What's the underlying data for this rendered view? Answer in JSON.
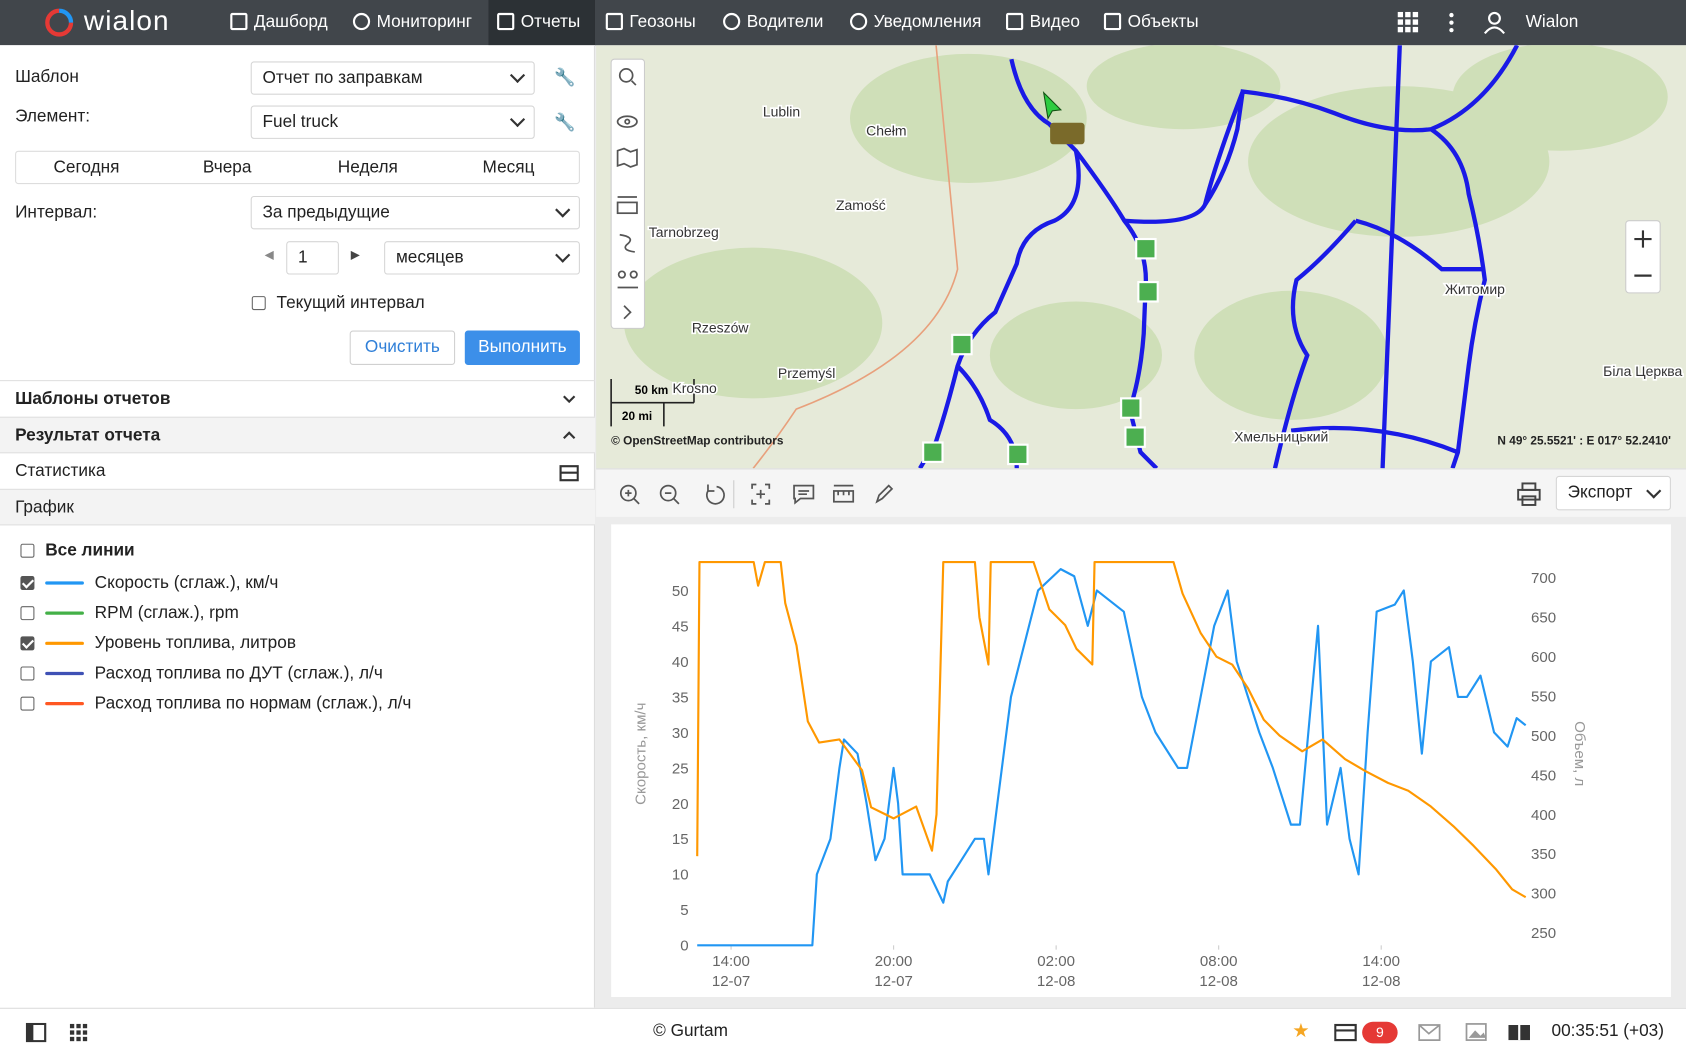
{
  "nav": {
    "logo": "wialon",
    "items": [
      "Дашборд",
      "Мониторинг",
      "Отчеты",
      "Геозоны",
      "Водители",
      "Уведомления",
      "Видео",
      "Объекты"
    ],
    "active": 2,
    "user": "Wialon"
  },
  "form": {
    "template_label": "Шаблон",
    "template_value": "Отчет по заправкам",
    "element_label": "Элемент:",
    "element_value": "Fuel truck",
    "periods": [
      "Сегодня",
      "Вчера",
      "Неделя",
      "Месяц"
    ],
    "interval_label": "Интервал:",
    "interval_value": "За предыдущие",
    "count": "1",
    "unit": "месяцев",
    "current_interval": "Текущий интервал",
    "clear": "Очистить",
    "run": "Выполнить"
  },
  "sections": [
    "Шаблоны отчетов",
    "Результат отчета",
    "Статистика",
    "График"
  ],
  "lines": {
    "all": "Все линии",
    "items": [
      {
        "name": "Скорость (сглаж.), км/ч",
        "color": "#2196f3",
        "checked": true
      },
      {
        "name": "RPM (сглаж.), rpm",
        "color": "#43b047",
        "checked": false
      },
      {
        "name": "Уровень топлива, литров",
        "color": "#ff9800",
        "checked": true
      },
      {
        "name": "Расход топлива по ДУТ (сглаж.), л/ч",
        "color": "#3f51b5",
        "checked": false
      },
      {
        "name": "Расход топлива по нормам (сглаж.), л/ч",
        "color": "#ff5722",
        "checked": false
      }
    ]
  },
  "map": {
    "labels": [
      "Lublin",
      "Chełm",
      "Zamość",
      "Tarnobrzeg",
      "Rzeszów",
      "Przemyśl",
      "Krosno",
      "Житомир",
      "Біла Церква",
      "Хмельницький"
    ],
    "scale_km": "50 km",
    "scale_mi": "20 mi",
    "attribution": "© OpenStreetMap contributors",
    "coords": "N 49° 25.5521' : E 017° 52.2410'"
  },
  "toolbar": {
    "export": "Экспорт"
  },
  "footer": {
    "copyright": "© Gurtam",
    "badge": "9",
    "time": "00:35:51 (+03)"
  },
  "chart_data": {
    "type": "line",
    "y_label": "Скорость, км/ч",
    "y2_label": "Объем, л",
    "xlim": [
      "12-07 12:45",
      "12-08 19:20"
    ],
    "xticks": [
      {
        "value": "12-07 14:00",
        "label": "14:00 12-07"
      },
      {
        "value": "12-07 20:00",
        "label": "20:00 12-07"
      },
      {
        "value": "12-08 02:00",
        "label": "02:00 12-08"
      },
      {
        "value": "12-08 08:00",
        "label": "08:00 12-08"
      },
      {
        "value": "12-08 14:00",
        "label": "14:00 12-08"
      }
    ],
    "ylim": [
      0,
      54
    ],
    "yticks": [
      0,
      5,
      10,
      15,
      20,
      25,
      30,
      35,
      40,
      45,
      50
    ],
    "y2lim": [
      234,
      720
    ],
    "y2ticks": [
      250,
      300,
      350,
      400,
      450,
      500,
      550,
      600,
      650,
      700
    ],
    "series": [
      {
        "color": "#2196f3",
        "axis": "y",
        "x": [
          "12-07 12:45",
          "12-07 17:00",
          "12-07 17:10",
          "12-07 17:40",
          "12-07 18:00",
          "12-07 18:10",
          "12-07 18:40",
          "12-07 19:00",
          "12-07 19:20",
          "12-07 19:40",
          "12-07 20:00",
          "12-07 20:10",
          "12-07 20:20",
          "12-07 21:20",
          "12-07 21:50",
          "12-07 22:00",
          "12-07 22:20",
          "12-07 23:00",
          "12-07 23:20",
          "12-07 23:30",
          "12-07 23:50",
          "12-08 00:20",
          "12-08 01:00",
          "12-08 01:20",
          "12-08 02:10",
          "12-08 02:40",
          "12-08 03:10",
          "12-08 03:30",
          "12-08 04:30",
          "12-08 05:10",
          "12-08 05:40",
          "12-08 06:30",
          "12-08 06:50",
          "12-08 07:20",
          "12-08 07:50",
          "12-08 08:20",
          "12-08 08:40",
          "12-08 09:30",
          "12-08 10:00",
          "12-08 10:40",
          "12-08 11:00",
          "12-08 11:40",
          "12-08 12:00",
          "12-08 12:30",
          "12-08 12:50",
          "12-08 13:10",
          "12-08 13:30",
          "12-08 13:50",
          "12-08 14:30",
          "12-08 14:50",
          "12-08 15:10",
          "12-08 15:30",
          "12-08 15:50",
          "12-08 16:30",
          "12-08 16:50",
          "12-08 17:10",
          "12-08 17:40",
          "12-08 18:10",
          "12-08 18:40",
          "12-08 19:00",
          "12-08 19:20"
        ],
        "values": [
          0,
          0,
          10,
          15,
          25,
          29,
          27,
          20,
          12,
          15,
          25,
          20,
          10,
          10,
          6,
          9,
          11,
          15,
          15,
          10,
          20,
          35,
          45,
          50,
          53,
          52,
          45,
          50,
          47,
          35,
          30,
          25,
          25,
          35,
          45,
          50,
          40,
          30,
          25,
          17,
          17,
          45,
          17,
          25,
          15,
          10,
          30,
          47,
          48,
          50,
          40,
          27,
          40,
          42,
          35,
          35,
          38,
          30,
          28,
          32,
          31
        ]
      },
      {
        "color": "#ff9800",
        "axis": "y2",
        "x": [
          "12-07 12:45",
          "12-07 12:50",
          "12-07 14:50",
          "12-07 15:00",
          "12-07 15:15",
          "12-07 15:50",
          "12-07 16:00",
          "12-07 16:25",
          "12-07 16:50",
          "12-07 17:15",
          "12-07 18:00",
          "12-07 18:50",
          "12-07 19:10",
          "12-07 20:00",
          "12-07 20:50",
          "12-07 21:25",
          "12-07 21:35",
          "12-07 21:50",
          "12-07 23:00",
          "12-07 23:10",
          "12-07 23:30",
          "12-07 23:35",
          "12-08 01:10",
          "12-08 01:45",
          "12-08 02:20",
          "12-08 02:45",
          "12-08 03:20",
          "12-08 03:25",
          "12-08 06:20",
          "12-08 06:40",
          "12-08 07:20",
          "12-08 07:55",
          "12-08 08:30",
          "12-08 09:05",
          "12-08 09:40",
          "12-08 10:15",
          "12-08 11:05",
          "12-08 11:50",
          "12-08 12:40",
          "12-08 13:25",
          "12-08 14:15",
          "12-08 15:00",
          "12-08 15:50",
          "12-08 16:40",
          "12-08 17:25",
          "12-08 18:15",
          "12-08 18:50",
          "12-08 19:20"
        ],
        "values": [
          347,
          720,
          720,
          690,
          720,
          720,
          668,
          614,
          518,
          491,
          495,
          456,
          409,
          395,
          410,
          354,
          400,
          720,
          720,
          650,
          590,
          720,
          720,
          660,
          640,
          610,
          590,
          720,
          720,
          680,
          630,
          600,
          590,
          560,
          520,
          500,
          480,
          495,
          470,
          455,
          440,
          430,
          410,
          385,
          360,
          330,
          305,
          295
        ]
      }
    ]
  }
}
